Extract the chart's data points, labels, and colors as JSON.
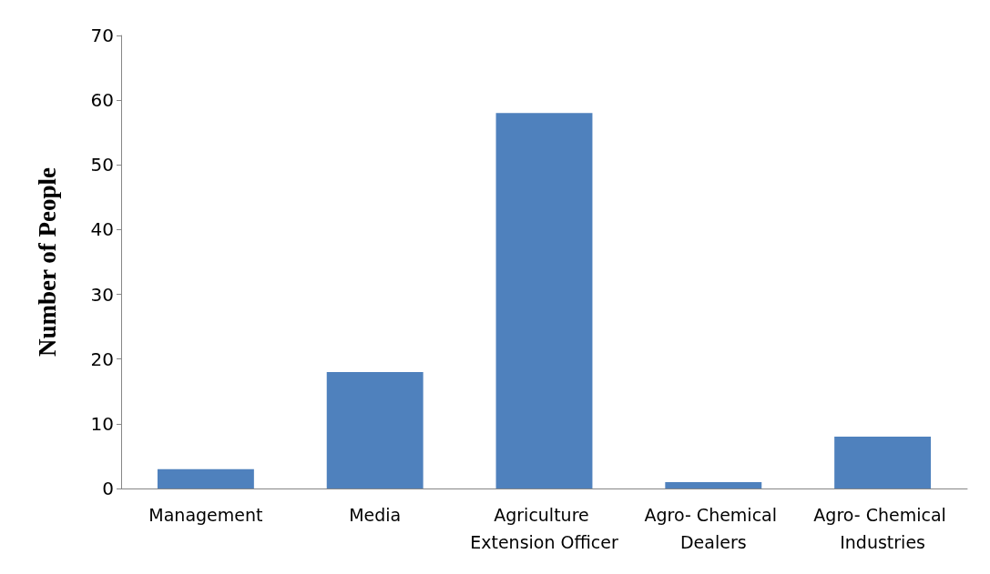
{
  "chart_data": {
    "type": "bar",
    "ylabel": "Number of People",
    "categories": [
      "Management",
      "Media",
      "Agriculture Extension Officer",
      "Agro- Chemical Dealers",
      "Agro- Chemical Industries"
    ],
    "values": [
      3,
      18,
      58,
      1,
      8
    ],
    "color": "#4f81bd",
    "ylim": [
      0,
      70
    ],
    "yticks": [
      0,
      10,
      20,
      30,
      40,
      50,
      60,
      70
    ],
    "grid": false
  }
}
